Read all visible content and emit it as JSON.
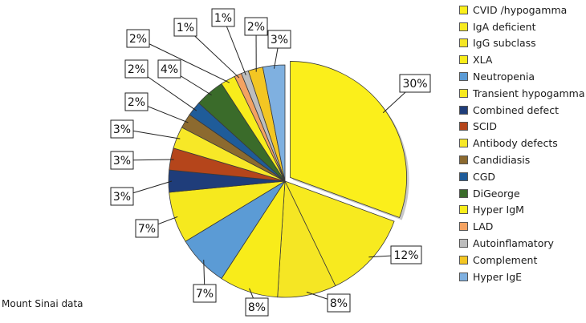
{
  "chart_data": {
    "type": "pie",
    "caption": "Mount Sinai data",
    "legend_position": "right",
    "slices": [
      {
        "label": "CVID /hypogamma",
        "value": 30,
        "display": "30%",
        "color": "#fbef1b"
      },
      {
        "label": "IgA deficient",
        "value": 12,
        "display": "12%",
        "color": "#f7ea1f"
      },
      {
        "label": "IgG subclass",
        "value": 8,
        "display": "8%",
        "color": "#f5e624"
      },
      {
        "label": "XLA",
        "value": 8,
        "display": "8%",
        "color": "#f8ec1a"
      },
      {
        "label": "Neutropenia",
        "value": 7,
        "display": "7%",
        "color": "#5b9bd5"
      },
      {
        "label": "Transient hypogamma",
        "value": 7,
        "display": "7%",
        "color": "#f6e91e"
      },
      {
        "label": "Combined defect",
        "value": 3,
        "display": "3%",
        "color": "#1f3d7a"
      },
      {
        "label": "SCID",
        "value": 3,
        "display": "3%",
        "color": "#b5451b"
      },
      {
        "label": "Antibody defects",
        "value": 3,
        "display": "3%",
        "color": "#f7e827"
      },
      {
        "label": "Candidiasis",
        "value": 2,
        "display": "2%",
        "color": "#8c6a2f"
      },
      {
        "label": "CGD",
        "value": 2,
        "display": "2%",
        "color": "#1f5c99"
      },
      {
        "label": "DiGeorge",
        "value": 4,
        "display": "4%",
        "color": "#3a6b2a"
      },
      {
        "label": "Hyper IgM",
        "value": 2,
        "display": "2%",
        "color": "#f8ed1c"
      },
      {
        "label": "LAD",
        "value": 1,
        "display": "1%",
        "color": "#f4a261"
      },
      {
        "label": "Autoinflamatory",
        "value": 1,
        "display": "1%",
        "color": "#bdbdbd"
      },
      {
        "label": "Complement",
        "value": 2,
        "display": "2%",
        "color": "#f3c623"
      },
      {
        "label": "Hyper IgE",
        "value": 3,
        "display": "3%",
        "color": "#7fb0e0"
      }
    ]
  }
}
